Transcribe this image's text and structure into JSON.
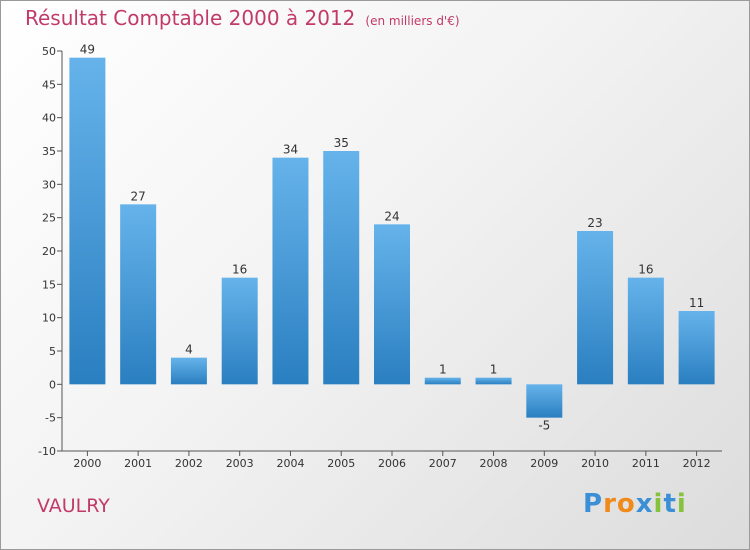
{
  "chart_data": {
    "type": "bar",
    "title": "Résultat Comptable 2000 à 2012",
    "subtitle": "(en milliers d'€)",
    "categories": [
      "2000",
      "2001",
      "2002",
      "2003",
      "2004",
      "2005",
      "2006",
      "2007",
      "2008",
      "2009",
      "2010",
      "2011",
      "2012"
    ],
    "values": [
      49,
      27,
      4,
      16,
      34,
      35,
      24,
      1,
      1,
      -5,
      23,
      16,
      11
    ],
    "ylim": [
      -10,
      50
    ],
    "yticks": [
      -10,
      -5,
      0,
      5,
      10,
      15,
      20,
      25,
      30,
      35,
      40,
      45,
      50
    ],
    "xlabel": "",
    "ylabel": "",
    "grid": false,
    "colors": {
      "bar_light": "#66b3eb",
      "bar_dark": "#2a7fc0",
      "title": "#c23a6a"
    }
  },
  "place_name": "VAULRY",
  "logo": {
    "text": "Proxiti",
    "letters": [
      "P",
      "r",
      "o",
      "x",
      "i",
      "t",
      "i"
    ],
    "colors": [
      "#3a8fd6",
      "#f08a1c",
      "#f08a1c",
      "#3a8fd6",
      "#86c23c",
      "#3a8fd6",
      "#86c23c"
    ]
  }
}
